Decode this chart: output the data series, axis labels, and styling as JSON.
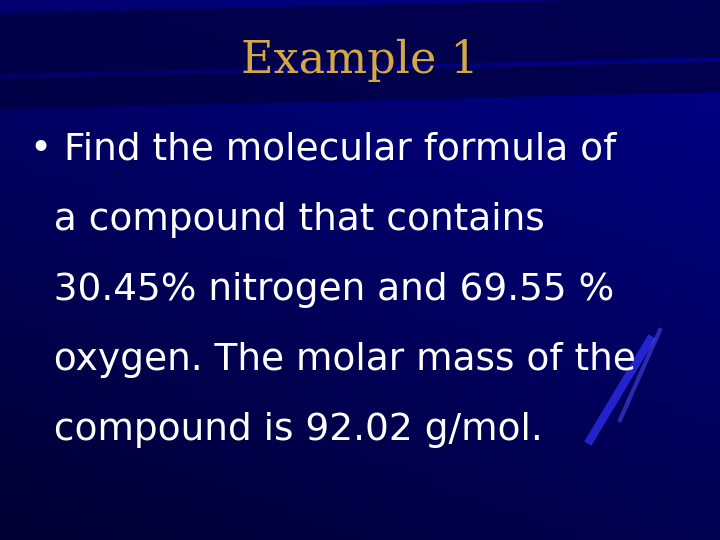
{
  "title": "Example 1",
  "title_color": "#D4A843",
  "title_fontsize": 32,
  "body_lines": [
    "• Find the molecular formula of",
    "  a compound that contains",
    "  30.45% nitrogen and 69.55 %",
    "  oxygen. The molar mass of the",
    "  compound is 92.02 g/mol."
  ],
  "body_color": "#FFFFFF",
  "body_fontsize": 27,
  "bg_base_color": [
    0,
    0,
    100
  ],
  "bg_mid_color": [
    0,
    0,
    160
  ],
  "stripe_color": [
    0,
    0,
    50
  ],
  "figsize": [
    7.2,
    5.4
  ],
  "dpi": 100
}
